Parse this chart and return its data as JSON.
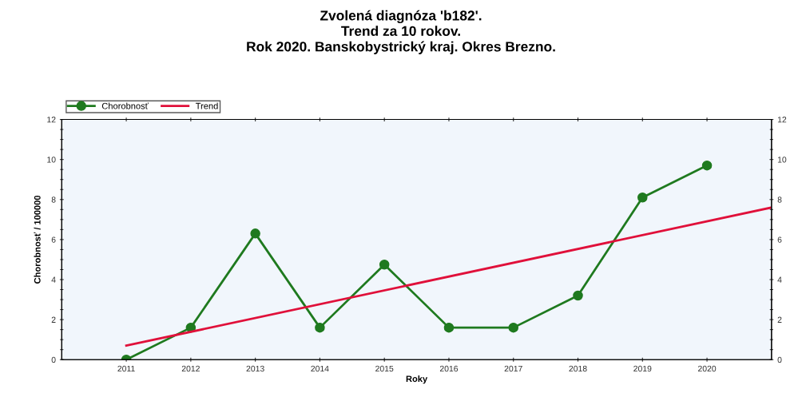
{
  "chart_data": {
    "type": "line",
    "title": "Zvolená diagnóza 'b182'.\nTrend za 10 rokov.\nRok 2020. Banskobystrický kraj. Okres Brezno.",
    "xlabel": "Roky",
    "ylabel": "Chorobnosť / 100000",
    "xlim": [
      2010,
      2021
    ],
    "xticks": [
      2011,
      2012,
      2013,
      2014,
      2015,
      2016,
      2017,
      2018,
      2019,
      2020
    ],
    "ylim": [
      0,
      12
    ],
    "yticks": [
      0,
      2,
      4,
      6,
      8,
      10,
      12
    ],
    "y2lim": [
      0,
      12
    ],
    "y2ticks": [
      0,
      2,
      4,
      6,
      8,
      10,
      12
    ],
    "legend": "top left",
    "grid": false,
    "series": [
      {
        "name": "Chorobnosť",
        "color": "#1f7a1f",
        "marker": "circle",
        "x": [
          2011,
          2012,
          2013,
          2014,
          2015,
          2016,
          2017,
          2018,
          2019,
          2020
        ],
        "values": [
          0,
          1.6,
          6.3,
          1.6,
          4.75,
          1.6,
          1.6,
          3.2,
          8.1,
          9.7
        ]
      },
      {
        "name": "Trend",
        "color": "#e0103a",
        "marker": "none",
        "x": [
          2011,
          2021
        ],
        "values": [
          0.7,
          7.6
        ]
      }
    ]
  }
}
